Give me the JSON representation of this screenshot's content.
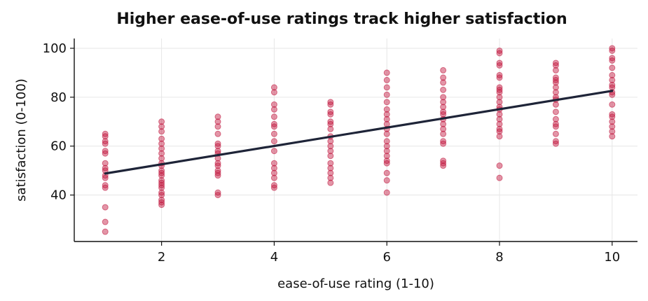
{
  "chart_data": {
    "type": "scatter",
    "title": "Higher ease-of-use ratings track higher satisfaction",
    "xlabel": "ease-of-use rating (1-10)",
    "ylabel": "satisfaction (0-100)",
    "xlim": [
      0.45,
      10.45
    ],
    "ylim": [
      21,
      104
    ],
    "xticks": [
      2,
      4,
      6,
      8,
      10
    ],
    "yticks": [
      40,
      60,
      80,
      100
    ],
    "grid": true,
    "colors": {
      "points": "#c0143c",
      "trend": "#1e2438",
      "grid": "#e6e6e6",
      "axis": "#111111"
    },
    "series": [
      {
        "type": "scatter",
        "points": [
          [
            1,
            65
          ],
          [
            1,
            64
          ],
          [
            1,
            62
          ],
          [
            1,
            61
          ],
          [
            1,
            58
          ],
          [
            1,
            57
          ],
          [
            1,
            53
          ],
          [
            1,
            51
          ],
          [
            1,
            50
          ],
          [
            1,
            48
          ],
          [
            1,
            47
          ],
          [
            1,
            44
          ],
          [
            1,
            43
          ],
          [
            1,
            35
          ],
          [
            1,
            29
          ],
          [
            1,
            25
          ],
          [
            2,
            70
          ],
          [
            2,
            68
          ],
          [
            2,
            66
          ],
          [
            2,
            63
          ],
          [
            2,
            61
          ],
          [
            2,
            59
          ],
          [
            2,
            57
          ],
          [
            2,
            55
          ],
          [
            2,
            53
          ],
          [
            2,
            52
          ],
          [
            2,
            50
          ],
          [
            2,
            49
          ],
          [
            2,
            48
          ],
          [
            2,
            46
          ],
          [
            2,
            45
          ],
          [
            2,
            44
          ],
          [
            2,
            43
          ],
          [
            2,
            41
          ],
          [
            2,
            40
          ],
          [
            2,
            38
          ],
          [
            2,
            37
          ],
          [
            2,
            36
          ],
          [
            3,
            72
          ],
          [
            3,
            70
          ],
          [
            3,
            68
          ],
          [
            3,
            65
          ],
          [
            3,
            61
          ],
          [
            3,
            60
          ],
          [
            3,
            58
          ],
          [
            3,
            57
          ],
          [
            3,
            55
          ],
          [
            3,
            53
          ],
          [
            3,
            52
          ],
          [
            3,
            50
          ],
          [
            3,
            49
          ],
          [
            3,
            48
          ],
          [
            3,
            41
          ],
          [
            3,
            40
          ],
          [
            4,
            84
          ],
          [
            4,
            82
          ],
          [
            4,
            77
          ],
          [
            4,
            75
          ],
          [
            4,
            72
          ],
          [
            4,
            69
          ],
          [
            4,
            68
          ],
          [
            4,
            65
          ],
          [
            4,
            62
          ],
          [
            4,
            58
          ],
          [
            4,
            53
          ],
          [
            4,
            51
          ],
          [
            4,
            49
          ],
          [
            4,
            47
          ],
          [
            4,
            44
          ],
          [
            4,
            43
          ],
          [
            5,
            78
          ],
          [
            5,
            77
          ],
          [
            5,
            74
          ],
          [
            5,
            73
          ],
          [
            5,
            70
          ],
          [
            5,
            69
          ],
          [
            5,
            67
          ],
          [
            5,
            64
          ],
          [
            5,
            62
          ],
          [
            5,
            60
          ],
          [
            5,
            58
          ],
          [
            5,
            56
          ],
          [
            5,
            53
          ],
          [
            5,
            51
          ],
          [
            5,
            49
          ],
          [
            5,
            47
          ],
          [
            5,
            45
          ],
          [
            6,
            90
          ],
          [
            6,
            87
          ],
          [
            6,
            84
          ],
          [
            6,
            81
          ],
          [
            6,
            78
          ],
          [
            6,
            75
          ],
          [
            6,
            73
          ],
          [
            6,
            71
          ],
          [
            6,
            69
          ],
          [
            6,
            67
          ],
          [
            6,
            65
          ],
          [
            6,
            62
          ],
          [
            6,
            60
          ],
          [
            6,
            58
          ],
          [
            6,
            56
          ],
          [
            6,
            54
          ],
          [
            6,
            53
          ],
          [
            6,
            49
          ],
          [
            6,
            46
          ],
          [
            6,
            41
          ],
          [
            7,
            91
          ],
          [
            7,
            88
          ],
          [
            7,
            86
          ],
          [
            7,
            83
          ],
          [
            7,
            80
          ],
          [
            7,
            78
          ],
          [
            7,
            76
          ],
          [
            7,
            74
          ],
          [
            7,
            73
          ],
          [
            7,
            71
          ],
          [
            7,
            69
          ],
          [
            7,
            67
          ],
          [
            7,
            65
          ],
          [
            7,
            62
          ],
          [
            7,
            61
          ],
          [
            7,
            54
          ],
          [
            7,
            53
          ],
          [
            7,
            52
          ],
          [
            8,
            99
          ],
          [
            8,
            98
          ],
          [
            8,
            94
          ],
          [
            8,
            93
          ],
          [
            8,
            89
          ],
          [
            8,
            88
          ],
          [
            8,
            84
          ],
          [
            8,
            83
          ],
          [
            8,
            82
          ],
          [
            8,
            80
          ],
          [
            8,
            78
          ],
          [
            8,
            76
          ],
          [
            8,
            75
          ],
          [
            8,
            73
          ],
          [
            8,
            71
          ],
          [
            8,
            69
          ],
          [
            8,
            67
          ],
          [
            8,
            66
          ],
          [
            8,
            64
          ],
          [
            8,
            52
          ],
          [
            8,
            47
          ],
          [
            9,
            94
          ],
          [
            9,
            93
          ],
          [
            9,
            91
          ],
          [
            9,
            88
          ],
          [
            9,
            87
          ],
          [
            9,
            86
          ],
          [
            9,
            84
          ],
          [
            9,
            82
          ],
          [
            9,
            80
          ],
          [
            9,
            79
          ],
          [
            9,
            77
          ],
          [
            9,
            74
          ],
          [
            9,
            71
          ],
          [
            9,
            69
          ],
          [
            9,
            68
          ],
          [
            9,
            65
          ],
          [
            9,
            62
          ],
          [
            9,
            61
          ],
          [
            10,
            100
          ],
          [
            10,
            99
          ],
          [
            10,
            96
          ],
          [
            10,
            95
          ],
          [
            10,
            92
          ],
          [
            10,
            89
          ],
          [
            10,
            87
          ],
          [
            10,
            85
          ],
          [
            10,
            84
          ],
          [
            10,
            82
          ],
          [
            10,
            81
          ],
          [
            10,
            77
          ],
          [
            10,
            73
          ],
          [
            10,
            72
          ],
          [
            10,
            70
          ],
          [
            10,
            68
          ],
          [
            10,
            66
          ],
          [
            10,
            64
          ]
        ]
      },
      {
        "type": "line",
        "x": [
          1,
          10
        ],
        "y": [
          48.8,
          82.6
        ]
      }
    ]
  }
}
